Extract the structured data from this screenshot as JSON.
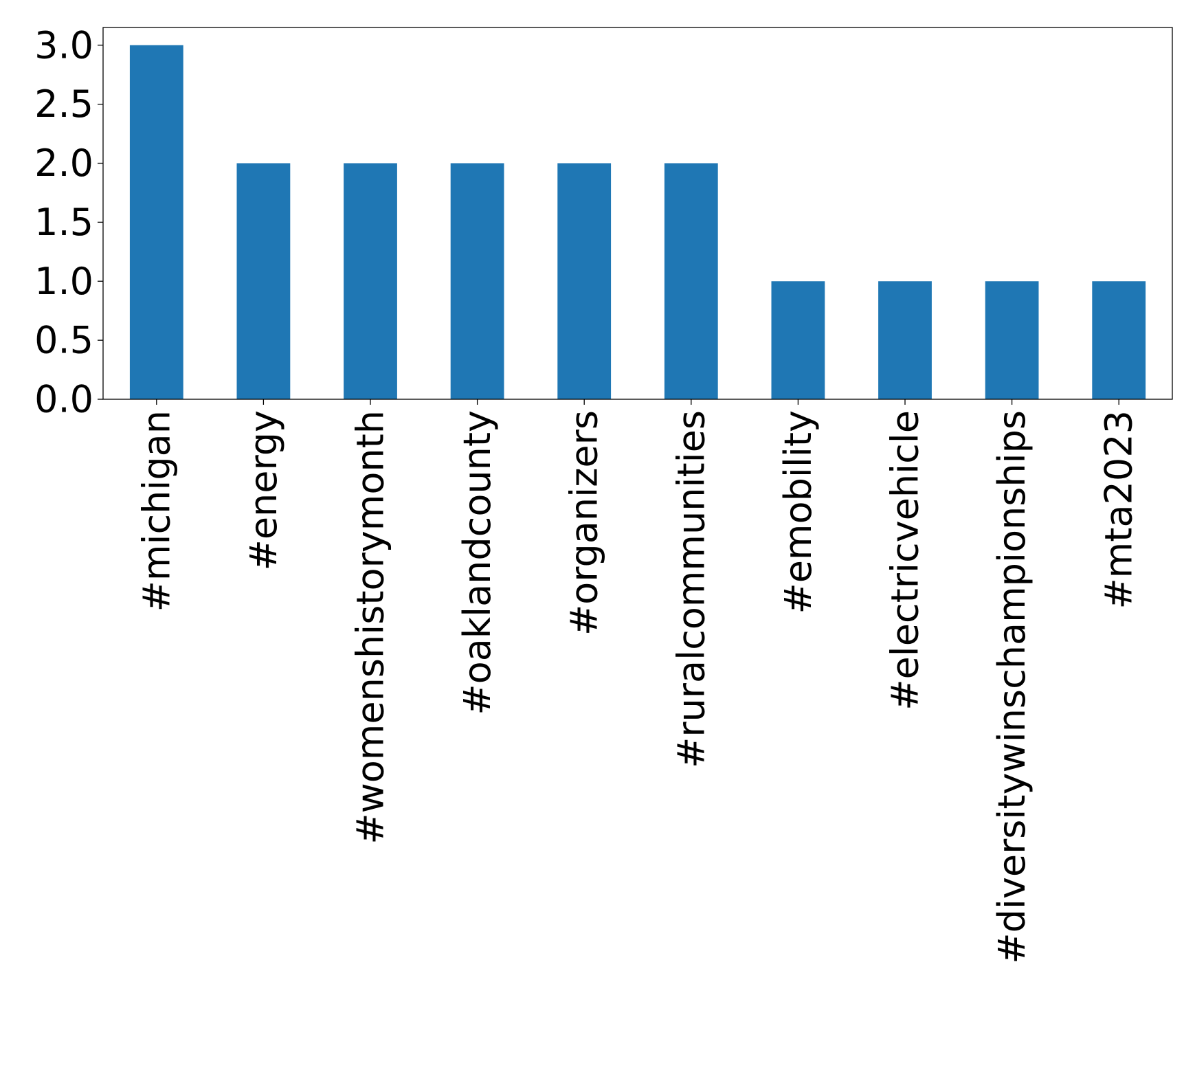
{
  "chart_data": {
    "type": "bar",
    "title": "",
    "xlabel": "",
    "ylabel": "",
    "categories": [
      "#michigan",
      "#energy",
      "#womenshistorymonth",
      "#oaklandcounty",
      "#organizers",
      "#ruralcommunities",
      "#emobility",
      "#electricvehicle",
      "#diversitywinschampionships",
      "#mta2023"
    ],
    "values": [
      3,
      2,
      2,
      2,
      2,
      2,
      1,
      1,
      1,
      1
    ],
    "ylim": [
      0,
      3.15
    ],
    "yticks": [
      "0.0",
      "0.5",
      "1.0",
      "1.5",
      "2.0",
      "2.5",
      "3.0"
    ],
    "bar_color": "#1f77b4",
    "grid": false,
    "legend": "none"
  }
}
